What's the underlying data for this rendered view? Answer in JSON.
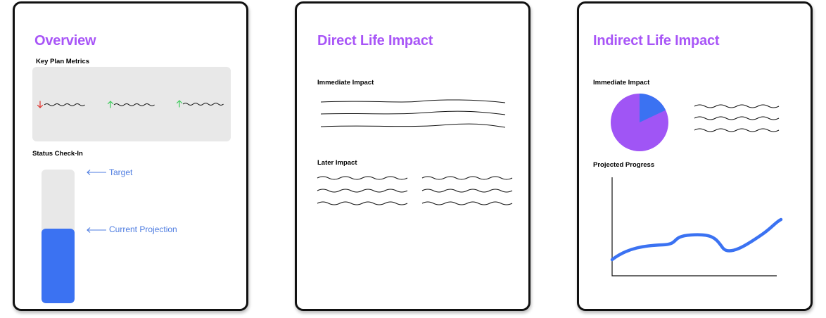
{
  "colors": {
    "heading": "#A855F7",
    "accent_blue": "#3B72F2",
    "annotation_blue": "#4C7BE0",
    "pie_purple": "#A055F5",
    "down_red": "#E0302A",
    "up_green": "#3CCB5A",
    "panel_gray": "#E8E8E8"
  },
  "overview": {
    "title": "Overview",
    "key_metrics_label": "Key Plan Metrics",
    "metrics": [
      {
        "trend": "down",
        "icon": "down-arrow-icon"
      },
      {
        "trend": "up",
        "icon": "up-arrow-icon"
      },
      {
        "trend": "up",
        "icon": "up-arrow-icon"
      }
    ],
    "status_label": "Status Check-In",
    "gauge": {
      "target_label": "Target",
      "projection_label": "Current Projection",
      "projection_fraction": 0.56
    }
  },
  "direct": {
    "title": "Direct Life Impact",
    "immediate_label": "Immediate Impact",
    "later_label": "Later Impact"
  },
  "indirect": {
    "title": "Indirect Life Impact",
    "immediate_label": "Immediate Impact",
    "pie_blue_fraction": 0.18,
    "progress_label": "Projected Progress"
  }
}
